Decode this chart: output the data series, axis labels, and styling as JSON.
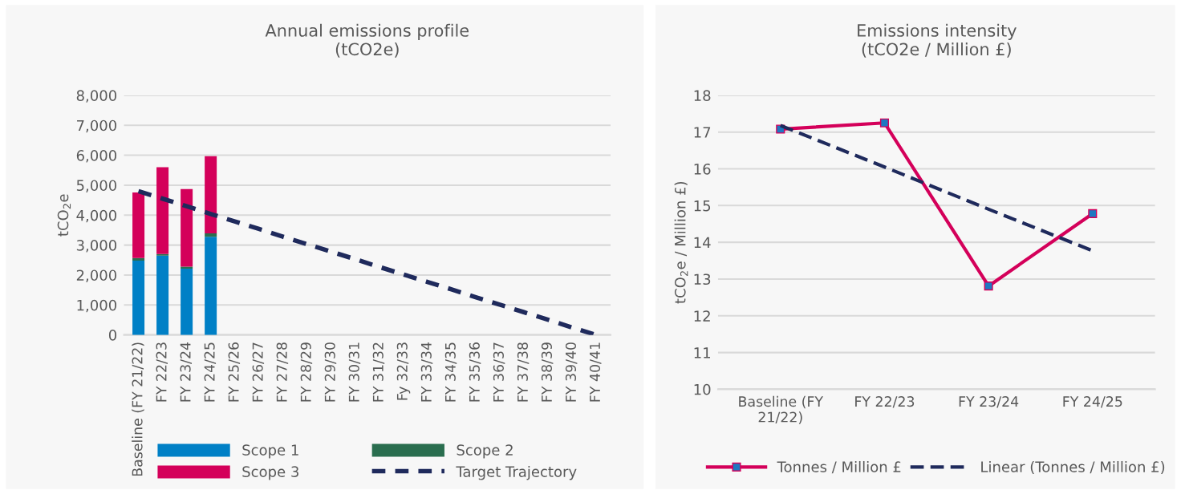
{
  "chart_data": [
    {
      "type": "bar",
      "title": "Annual emissions profile\n(tCO2e)",
      "ylabel": "tCO$_{2}$e",
      "stacked": true,
      "categories": [
        "Baseline (FY 21/22)",
        "FY 22/23",
        "FY 23/24",
        "FY 24/25",
        "FY 25/26",
        "FY 26/27",
        "FY 27/28",
        "FY 28/29",
        "FY 29/30",
        "FY 30/31",
        "FY 31/32",
        "Fy 32/33",
        "FY 33/34",
        "FY 34/35",
        "FY 35/36",
        "FY 36/37",
        "FY 37/38",
        "FY 38/39",
        "FY 39/40",
        "FY 40/41"
      ],
      "series": [
        {
          "name": "Scope 1",
          "color": "#0080c6",
          "values": [
            2480,
            2650,
            2210,
            3280,
            null,
            null,
            null,
            null,
            null,
            null,
            null,
            null,
            null,
            null,
            null,
            null,
            null,
            null,
            null,
            null
          ]
        },
        {
          "name": "Scope 2",
          "color": "#2a6e4f",
          "values": [
            90,
            50,
            70,
            110,
            null,
            null,
            null,
            null,
            null,
            null,
            null,
            null,
            null,
            null,
            null,
            null,
            null,
            null,
            null,
            null
          ]
        },
        {
          "name": "Scope 3",
          "color": "#d4005a",
          "values": [
            2190,
            2900,
            2590,
            2580,
            null,
            null,
            null,
            null,
            null,
            null,
            null,
            null,
            null,
            null,
            null,
            null,
            null,
            null,
            null,
            null
          ]
        },
        {
          "name": "Target Trajectory",
          "type": "line",
          "line_style": "dashed",
          "color": "#1f2a5c",
          "values": [
            4800,
            4550,
            4300,
            4040,
            3790,
            3540,
            3280,
            3030,
            2780,
            2530,
            2270,
            2020,
            1770,
            1520,
            1260,
            1010,
            760,
            510,
            250,
            0
          ]
        }
      ],
      "ylim": [
        0,
        8000
      ],
      "yticks": [
        {
          "value": 0,
          "label": "0"
        },
        {
          "value": 1000,
          "label": "1,000"
        },
        {
          "value": 2000,
          "label": "2,000"
        },
        {
          "value": 3000,
          "label": "3,000"
        },
        {
          "value": 4000,
          "label": "4,000"
        },
        {
          "value": 5000,
          "label": "5,000"
        },
        {
          "value": 6000,
          "label": "6,000"
        },
        {
          "value": 7000,
          "label": "7,000"
        },
        {
          "value": 8000,
          "label": "8,000"
        }
      ],
      "grid": "y",
      "legend": "bottom"
    },
    {
      "type": "line",
      "title": "Emissions intensity\n(tCO2e / Million £)",
      "ylabel": "tCO$_{2}$e / Million £)",
      "categories": [
        "Baseline (FY\n21/22)",
        "FY 22/23",
        "FY 23/24",
        "FY 24/25"
      ],
      "series": [
        {
          "name": "Tonnes / Million £",
          "color": "#d4005a",
          "marker": "square",
          "line_style": "solid",
          "values": [
            17.08,
            17.25,
            12.81,
            14.78
          ]
        },
        {
          "name": "Linear (Tonnes / Million £)",
          "color": "#1f2a5c",
          "marker": "none",
          "line_style": "dashed",
          "values": [
            17.18,
            16.05,
            14.9,
            13.77
          ]
        }
      ],
      "ylim": [
        10,
        18
      ],
      "yticks": [
        10,
        11,
        12,
        13,
        14,
        15,
        16,
        17,
        18
      ],
      "grid": "y",
      "legend": "bottom"
    }
  ]
}
